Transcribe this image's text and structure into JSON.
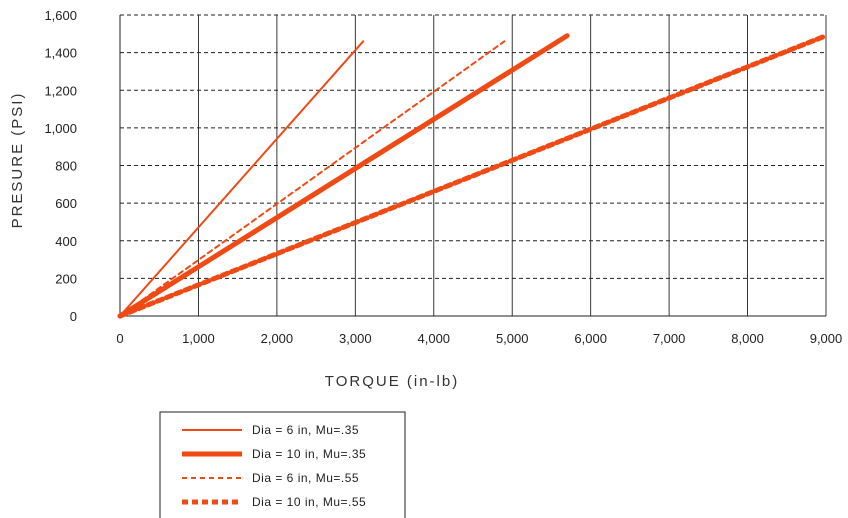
{
  "chart_data": {
    "type": "line",
    "title": "",
    "xlabel": "TORQUE (in-lb)",
    "ylabel": "PRESURE (PSI)",
    "xlim": [
      0,
      9000
    ],
    "ylim": [
      0,
      1600
    ],
    "x_ticks": [
      0,
      1000,
      2000,
      3000,
      4000,
      5000,
      6000,
      7000,
      8000,
      9000
    ],
    "y_ticks": [
      0,
      200,
      400,
      600,
      800,
      1000,
      1200,
      1400,
      1600
    ],
    "x_tick_labels": [
      "0",
      "1,000",
      "2,000",
      "3,000",
      "4,000",
      "5,000",
      "6,000",
      "7,000",
      "8,000",
      "9,000"
    ],
    "y_tick_labels": [
      "0",
      "200",
      "400",
      "600",
      "800",
      "1,000",
      "1,200",
      "1,400",
      "1,600"
    ],
    "grid": {
      "vertical": "solid",
      "horizontal": "dashed"
    },
    "legend_position": "bottom-left",
    "series": [
      {
        "name": "Dia = 6 in, Mu=.35",
        "style": "thin-solid",
        "color": "#f04a14",
        "x": [
          0,
          3100
        ],
        "y": [
          0,
          1460
        ]
      },
      {
        "name": "Dia = 10 in, Mu=.35",
        "style": "thick-solid",
        "color": "#f04a14",
        "x": [
          0,
          5700
        ],
        "y": [
          0,
          1490
        ]
      },
      {
        "name": "Dia = 6 in, Mu=.55",
        "style": "thin-dashed",
        "color": "#f04a14",
        "x": [
          0,
          4900
        ],
        "y": [
          0,
          1460
        ]
      },
      {
        "name": "Dia = 10 in, Mu=.55",
        "style": "thick-dashed",
        "color": "#f04a14",
        "x": [
          0,
          9000
        ],
        "y": [
          0,
          1490
        ]
      }
    ]
  }
}
